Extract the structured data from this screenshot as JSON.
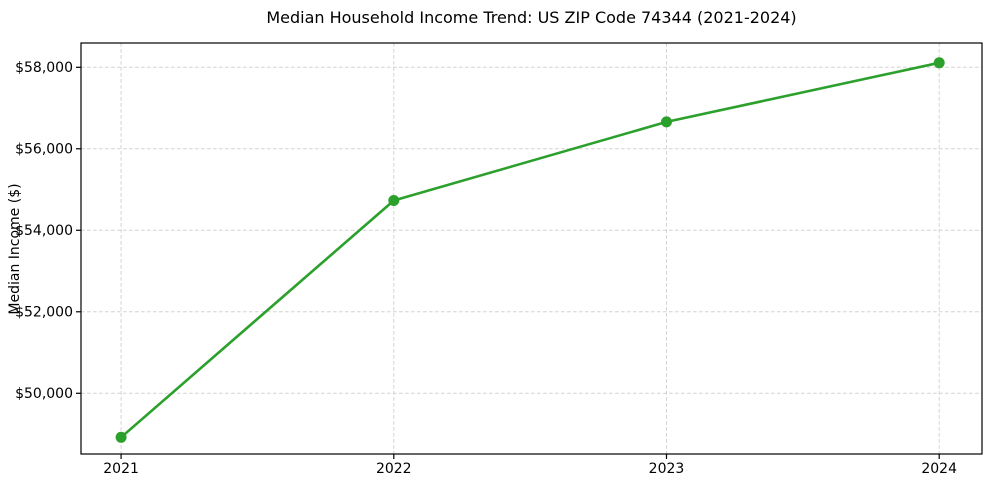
{
  "figure": {
    "title": "Median Household Income Trend: US ZIP Code 74344 (2021-2024)",
    "ylabel": "Median Income ($)"
  },
  "chart_data": {
    "type": "line",
    "title": "Median Household Income Trend: US ZIP Code 74344 (2021-2024)",
    "xlabel": "",
    "ylabel": "Median Income ($)",
    "x": [
      2021,
      2022,
      2023,
      2024
    ],
    "values": [
      48920,
      54730,
      56660,
      58110
    ],
    "xticks": {
      "values": [
        2021,
        2022,
        2023,
        2024
      ],
      "labels": [
        "2021",
        "2022",
        "2023",
        "2024"
      ]
    },
    "yticks": {
      "values": [
        50000,
        52000,
        54000,
        56000,
        58000
      ],
      "labels": [
        "$50,000",
        "$52,000",
        "$54,000",
        "$56,000",
        "$58,000"
      ]
    },
    "xlim": [
      2020.853,
      2024.157
    ],
    "ylim": [
      48510,
      58596
    ],
    "grid": true,
    "grid_style": "dashed",
    "legend": false,
    "line_color": "#2ca02c",
    "marker": "circle",
    "grid_color": "#cccccc",
    "spine_color": "#000000",
    "background": "#ffffff"
  }
}
